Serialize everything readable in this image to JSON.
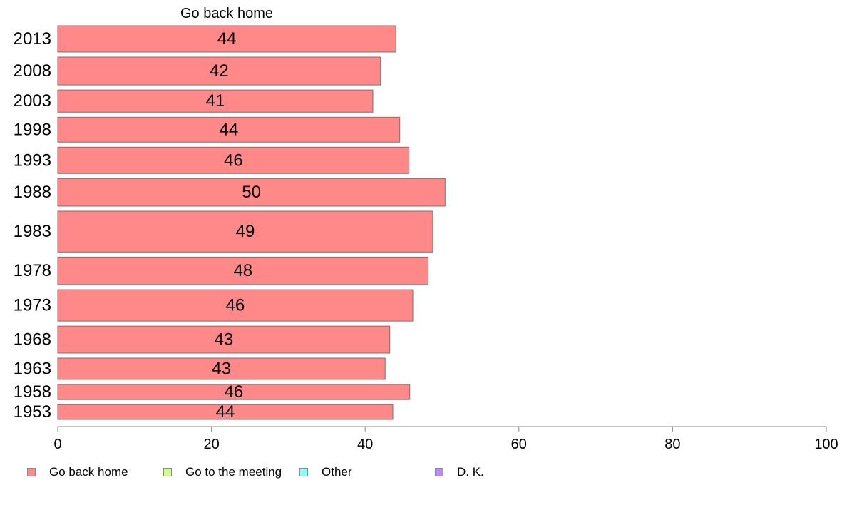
{
  "chart_data": {
    "type": "bar",
    "orientation": "horizontal",
    "title": "Go back home",
    "categories": [
      "2013",
      "2008",
      "2003",
      "1998",
      "1993",
      "1988",
      "1983",
      "1978",
      "1973",
      "1968",
      "1963",
      "1958",
      "1953"
    ],
    "series": [
      {
        "name": "Go back home",
        "color": "#ff8888",
        "values": [
          44,
          42,
          41,
          44.5,
          45.7,
          50.4,
          48.8,
          48.2,
          46.2,
          43.2,
          42.6,
          45.8,
          43.6
        ],
        "labels": [
          "44",
          "42",
          "41",
          "44",
          "46",
          "50",
          "49",
          "48",
          "46",
          "43",
          "43",
          "46",
          "44"
        ]
      }
    ],
    "bar_widths": [
      0.89,
      0.94,
      0.75,
      0.84,
      0.89,
      0.93,
      1.38,
      0.93,
      1.06,
      0.91,
      0.72,
      0.51,
      0.5
    ],
    "xlim": [
      0,
      100
    ],
    "xticks": [
      "0",
      "20",
      "40",
      "60",
      "80",
      "100"
    ],
    "grid": false,
    "legend_position": "bottom-left",
    "legend": [
      {
        "label": "Go back home",
        "color": "#ff8888"
      },
      {
        "label": "Go to the meeting",
        "color": "#ccff88"
      },
      {
        "label": "Other",
        "color": "#88ffff"
      },
      {
        "label": "D. K.",
        "color": "#bb88ff"
      }
    ]
  }
}
